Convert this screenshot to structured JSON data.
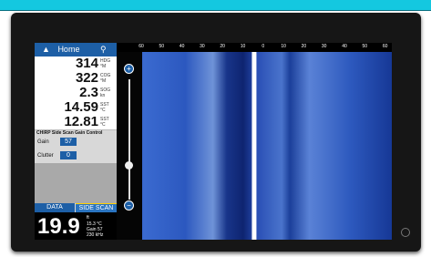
{
  "header": {
    "title": "Home"
  },
  "readouts": [
    {
      "value": 314,
      "label": "HDG",
      "unit": "°M"
    },
    {
      "value": 322,
      "label": "COG",
      "unit": "°M"
    },
    {
      "value": 2.3,
      "label": "SOG",
      "unit": "kn"
    },
    {
      "value": 14.59,
      "label": "SST",
      "unit": "°C"
    },
    {
      "value": 12.81,
      "label": "SST",
      "unit": "°C"
    }
  ],
  "gain_control": {
    "title": "CHIRP Side Scan Gain Control",
    "gain_label": "Gain",
    "gain": 57,
    "clutter_label": "Clutter",
    "clutter": 0
  },
  "tabs": [
    "DATA",
    "SIDE SCAN"
  ],
  "depth": {
    "value": 19.9,
    "unit": "ft",
    "details": [
      "15.3 °C",
      "Gain 57",
      "230 kHz"
    ]
  },
  "range_scale": [
    60,
    50,
    40,
    30,
    20,
    10,
    0,
    10,
    20,
    30,
    40,
    50,
    60
  ]
}
